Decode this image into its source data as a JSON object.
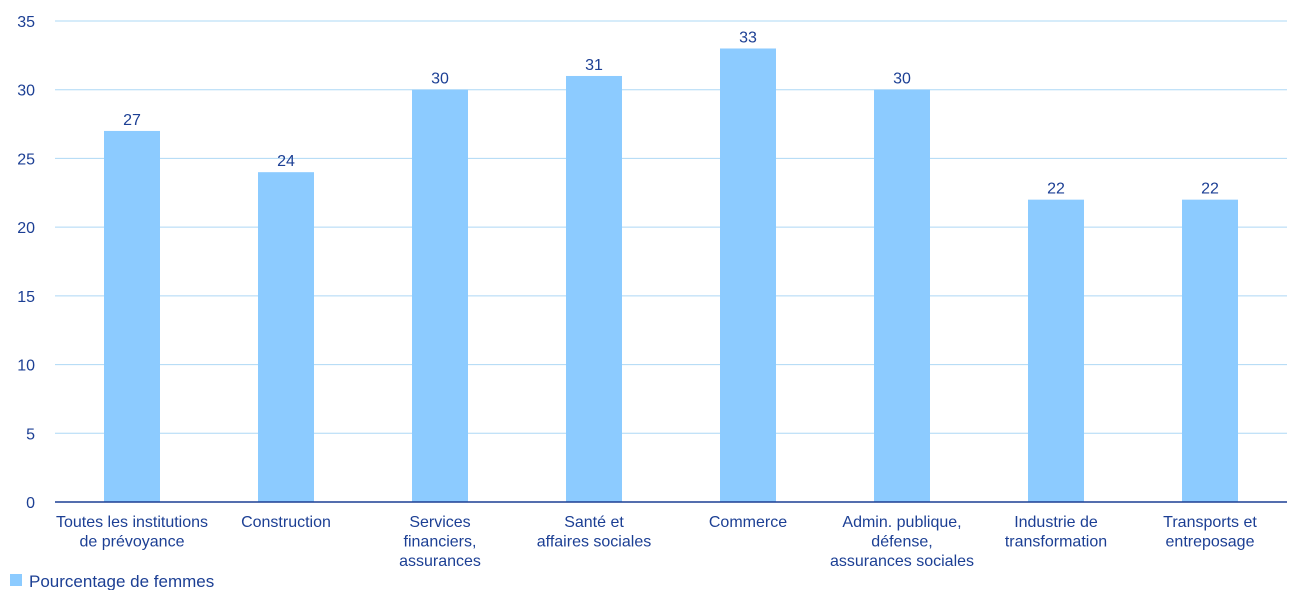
{
  "chart_data": {
    "type": "bar",
    "categories": [
      [
        "Toutes les institutions",
        "de prévoyance"
      ],
      [
        "Construction"
      ],
      [
        "Services",
        "financiers,",
        "assurances"
      ],
      [
        "Santé et",
        "affaires sociales"
      ],
      [
        "Commerce"
      ],
      [
        "Admin. publique,",
        "défense,",
        "assurances sociales"
      ],
      [
        "Industrie de",
        "transformation"
      ],
      [
        "Transports et",
        "entreposage"
      ]
    ],
    "series": [
      {
        "name": "Pourcentage de femmes",
        "values": [
          27,
          24,
          30,
          31,
          33,
          30,
          22,
          22
        ]
      }
    ],
    "ylim": [
      0,
      35
    ],
    "yticks": [
      0,
      5,
      10,
      15,
      20,
      25,
      30,
      35
    ],
    "grid": true,
    "legend_position": "bottom-left",
    "colors": {
      "bar": "#8ccbff",
      "text": "#1c3f94",
      "grid": "#aed8f5",
      "axis": "#1c3f94"
    }
  }
}
